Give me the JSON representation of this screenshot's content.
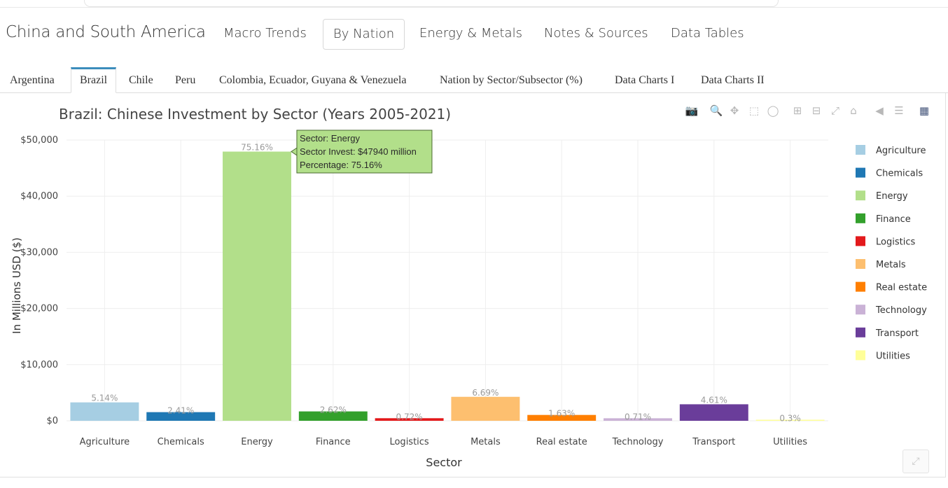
{
  "nav": {
    "brand": "China and South America",
    "links": [
      "Macro Trends",
      "By Nation",
      "Energy & Metals",
      "Notes & Sources",
      "Data Tables"
    ],
    "active": "By Nation"
  },
  "subtabs": {
    "items": [
      "Argentina",
      "Brazil",
      "Chile",
      "Peru",
      "Colombia, Ecuador, Guyana & Venezuela",
      "Nation by Sector/Subsector (%)",
      "Data Charts I",
      "Data Charts II"
    ],
    "active": "Brazil"
  },
  "modebar": {
    "icons": [
      "camera-icon",
      "zoom-icon",
      "pan-icon",
      "box-select-icon",
      "lasso-select-icon",
      "zoom-in-icon",
      "zoom-out-icon",
      "autoscale-icon",
      "reset-axes-icon",
      "hover-closest-icon",
      "hover-compare-icon",
      "plotly-logo-icon"
    ]
  },
  "tooltip": {
    "line1": "Sector: Energy",
    "line2": "Sector Invest: $47940 million",
    "line3": "Percentage: 75.16%"
  },
  "chart_data": {
    "type": "bar",
    "title": "Brazil: Chinese Investment by Sector (Years 2005-2021)",
    "xlabel": "Sector",
    "ylabel": "In Millions USD ($)",
    "ylim": [
      0,
      50000
    ],
    "ytick_labels": [
      "$0",
      "$10,000",
      "$20,000",
      "$30,000",
      "$40,000",
      "$50,000"
    ],
    "ytick_values": [
      0,
      10000,
      20000,
      30000,
      40000,
      50000
    ],
    "grid": true,
    "legend_position": "right",
    "categories": [
      "Agriculture",
      "Chemicals",
      "Energy",
      "Finance",
      "Logistics",
      "Metals",
      "Real estate",
      "Technology",
      "Transport",
      "Utilities"
    ],
    "values": [
      3280,
      1540,
      47940,
      1670,
      460,
      4270,
      1040,
      450,
      2940,
      190
    ],
    "labels": [
      "5.14%",
      "2.41%",
      "75.16%",
      "2.62%",
      "0.72%",
      "6.69%",
      "1.63%",
      "0.71%",
      "4.61%",
      "0.3%"
    ],
    "colors": [
      "#a6cee3",
      "#1f78b4",
      "#b2df8a",
      "#33a02c",
      "#e31a1c",
      "#fdbf6f",
      "#ff7f00",
      "#cab2d6",
      "#6a3d9a",
      "#ffff99"
    ]
  },
  "resize_icon": "resize-icon"
}
